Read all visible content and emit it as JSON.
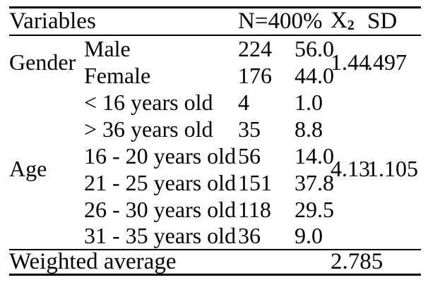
{
  "table": {
    "header": {
      "variables": "Variables",
      "n_pct": "N=400%",
      "chi_base": "X",
      "chi_sub": "2",
      "sd": "SD"
    },
    "groups": [
      {
        "label": "Gender",
        "chi": "1.44",
        "sd": ".497",
        "rows": [
          {
            "category": "Male",
            "n": "224",
            "pct": "56.0"
          },
          {
            "category": "Female",
            "n": "176",
            "pct": "44.0"
          }
        ]
      },
      {
        "label": "Age",
        "chi": "4.13",
        "sd": "1.105",
        "rows": [
          {
            "category": "< 16 years old",
            "n": "4",
            "pct": "1.0"
          },
          {
            "category": "> 36 years old",
            "n": "35",
            "pct": "8.8"
          },
          {
            "category": "16 - 20 years old",
            "n": "56",
            "pct": "14.0"
          },
          {
            "category": "21 - 25 years old",
            "n": "151",
            "pct": "37.8"
          },
          {
            "category": "26 - 30 years old",
            "n": "118",
            "pct": "29.5"
          },
          {
            "category": "31 - 35 years old",
            "n": "36",
            "pct": "9.0"
          }
        ]
      }
    ],
    "footer": {
      "label": "Weighted average",
      "value": "2.785"
    }
  }
}
